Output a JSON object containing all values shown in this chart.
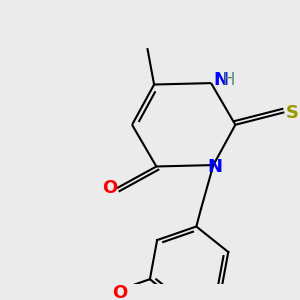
{
  "background_color": "#EBEBEB",
  "bond_color": "#000000",
  "bond_width": 1.5,
  "figsize": [
    3.0,
    3.0
  ],
  "dpi": 100,
  "xlim": [
    0,
    300
  ],
  "ylim": [
    0,
    300
  ]
}
